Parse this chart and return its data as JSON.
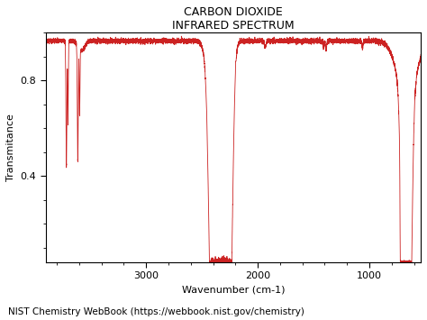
{
  "title_line1": "CARBON DIOXIDE",
  "title_line2": "INFRARED SPECTRUM",
  "xlabel": "Wavenumber (cm-1)",
  "ylabel": "Transmitance",
  "footnote": "NIST Chemistry WebBook (https://webbook.nist.gov/chemistry)",
  "xmin": 540,
  "xmax": 3900,
  "ymin": 0.04,
  "ymax": 1.0,
  "yticks": [
    0.4,
    0.8
  ],
  "xticks": [
    3000,
    2000,
    1000
  ],
  "line_color": "#cc2222",
  "bg_color": "#ffffff",
  "title_fontsize": 9,
  "axis_fontsize": 8,
  "footnote_fontsize": 7.5
}
